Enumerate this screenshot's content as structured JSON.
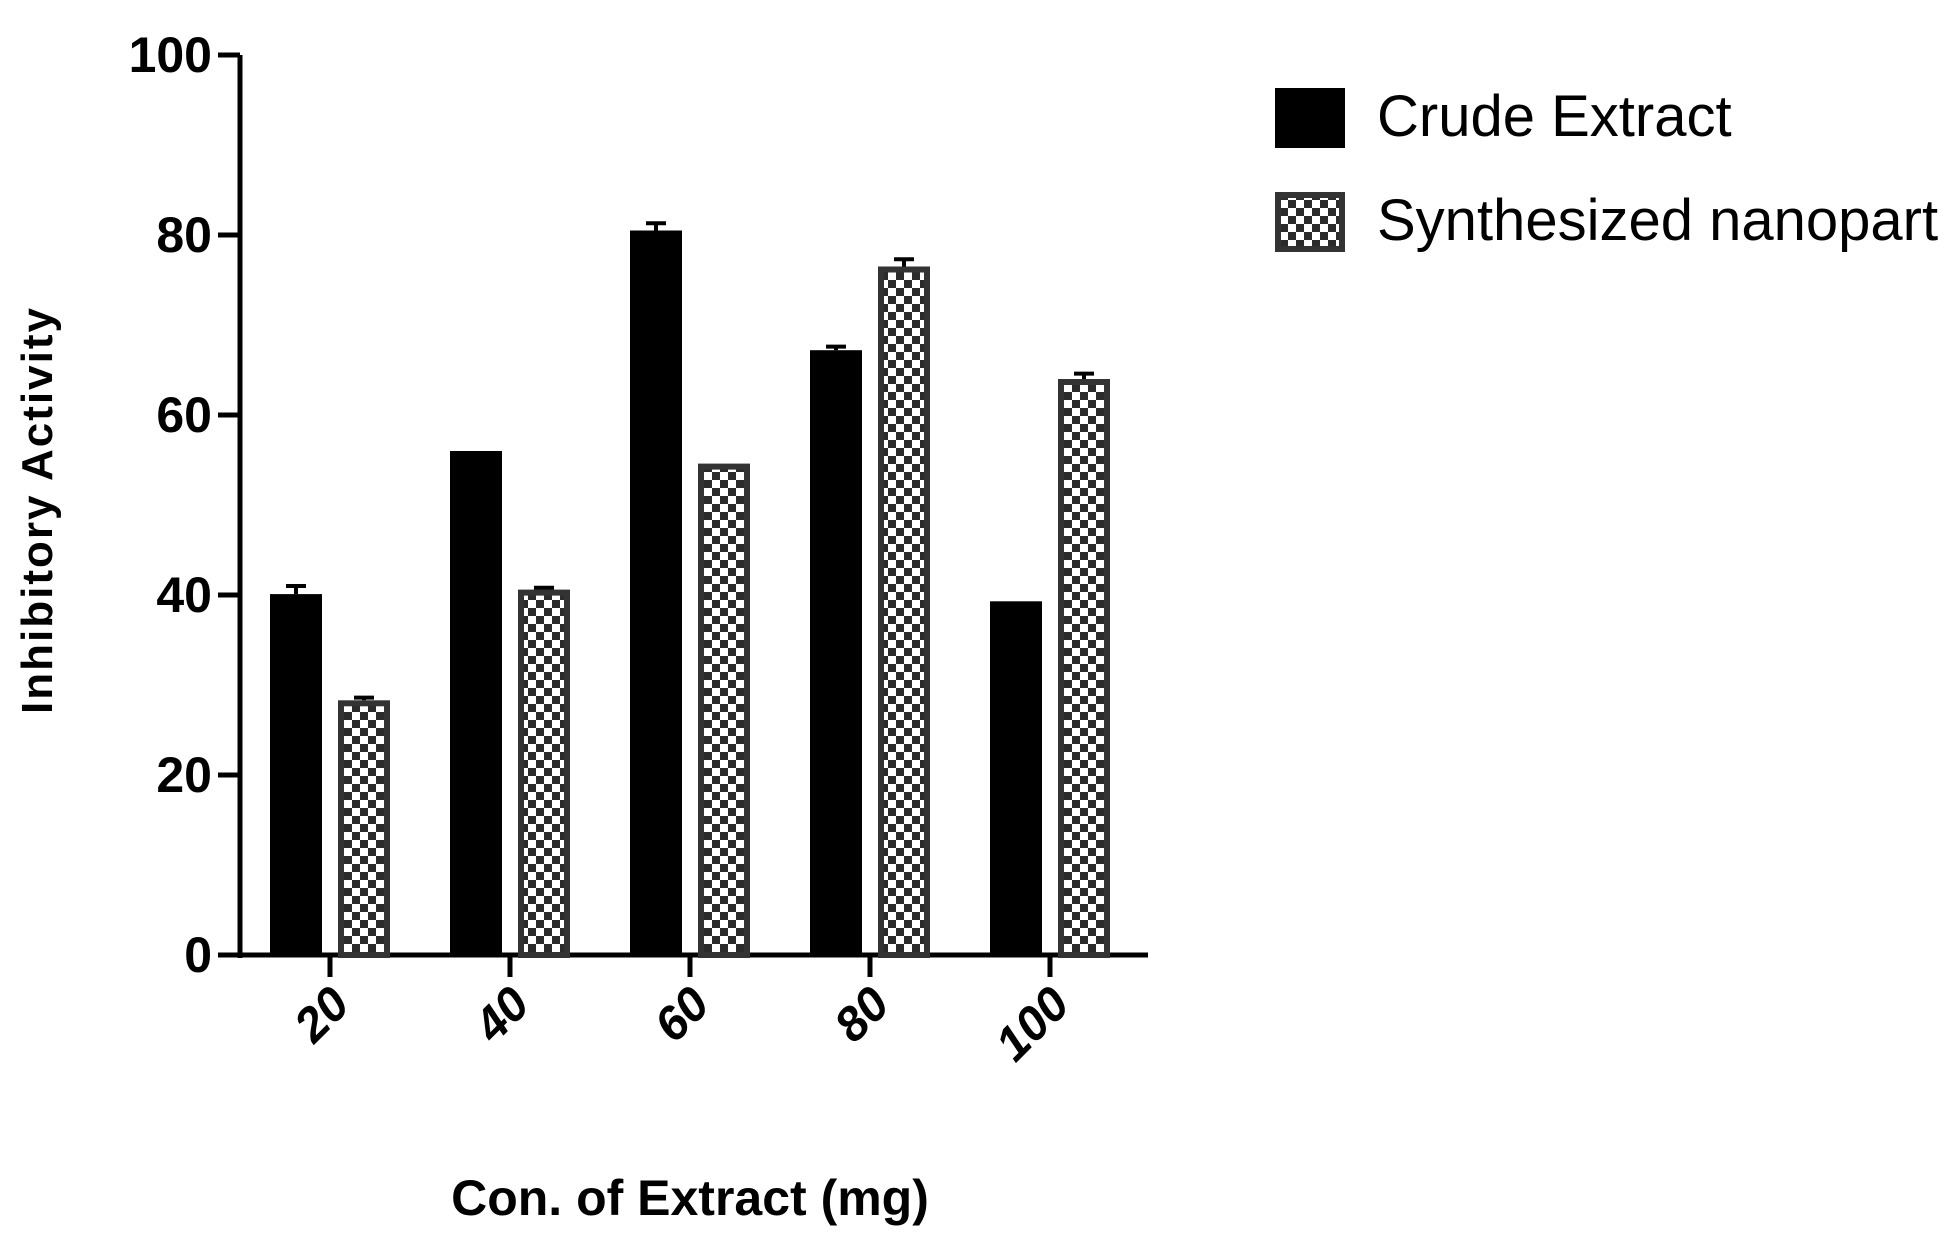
{
  "chart_data": {
    "type": "bar",
    "categories": [
      "20",
      "40",
      "60",
      "80",
      "100"
    ],
    "series": [
      {
        "name": "Crude Extract",
        "values": [
          40.1,
          56.0,
          80.5,
          67.2,
          39.3
        ],
        "errors": [
          0.9,
          0.0,
          0.8,
          0.4,
          0.0
        ],
        "color": "#000000",
        "pattern": "solid"
      },
      {
        "name": "Synthesized nanoparticle",
        "values": [
          28.3,
          40.6,
          54.6,
          76.5,
          64.0
        ],
        "errors": [
          0.3,
          0.2,
          0.0,
          0.8,
          0.6
        ],
        "color": "#333333",
        "pattern": "checkerboard"
      }
    ],
    "xlabel": "Con. of Extract (mg)",
    "ylabel": "Inhibitory Activity",
    "ylim": [
      0,
      100
    ],
    "yticks": [
      "0",
      "20",
      "40",
      "60",
      "80",
      "100"
    ],
    "legend_position": "top-right",
    "grid": false
  }
}
